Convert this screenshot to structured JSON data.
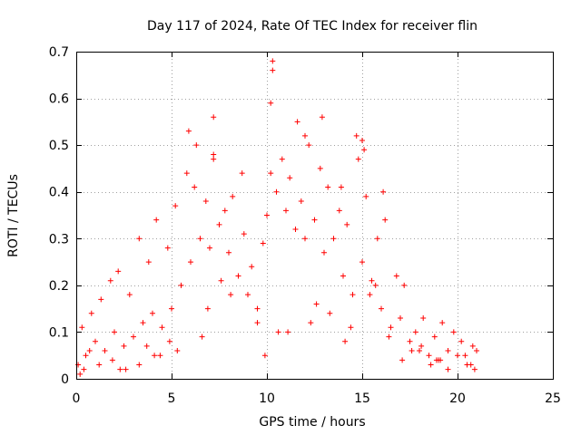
{
  "chart_data": {
    "type": "scatter",
    "title": "Day 117 of 2024, Rate Of TEC Index for receiver flin",
    "xlabel": "GPS time / hours",
    "ylabel": "ROTI / TECUs",
    "xlim": [
      0,
      25
    ],
    "ylim": [
      0,
      0.7
    ],
    "xticks": [
      "0",
      "5",
      "10",
      "15",
      "20",
      "25"
    ],
    "yticks": [
      "0",
      "0.1",
      "0.2",
      "0.3",
      "0.4",
      "0.5",
      "0.6",
      "0.7"
    ],
    "grid": true,
    "marker": "plus",
    "color": "#ff0000",
    "series": [
      {
        "x": [
          0.1,
          0.3,
          0.5,
          0.8,
          1.0,
          1.3,
          1.5,
          1.8,
          2.0,
          2.2,
          2.5,
          2.8,
          3.0,
          3.3,
          3.5,
          3.8,
          4.0,
          4.2,
          4.5,
          4.8,
          5.0,
          5.2,
          5.5,
          5.8,
          6.0,
          6.2,
          6.5,
          6.8,
          7.0,
          7.2,
          7.5,
          7.8,
          8.0,
          8.2,
          8.5,
          8.8,
          9.0,
          9.2,
          9.5,
          9.8,
          10.0,
          10.2,
          10.5,
          10.8,
          11.0,
          11.2,
          11.5,
          11.8,
          12.0,
          12.2,
          12.5,
          12.8,
          13.0,
          13.2,
          13.5,
          13.8,
          14.0,
          14.2,
          14.5,
          14.8,
          15.0,
          15.2,
          15.5,
          15.8,
          16.0,
          16.2,
          16.5,
          16.8,
          17.0,
          17.2,
          17.5,
          17.8,
          18.0,
          18.2,
          18.5,
          18.8,
          19.0,
          19.2,
          19.5,
          19.8,
          20.0,
          20.2,
          20.5,
          20.8,
          21.0,
          5.9,
          7.2,
          7.2,
          10.3,
          10.3,
          10.2,
          11.6,
          12.0,
          12.9,
          14.7,
          15.0,
          15.1,
          16.1,
          13.9,
          6.3,
          8.7,
          0.4,
          1.9,
          3.3,
          4.4,
          17.1,
          18.6,
          19.5,
          20.9,
          0.2,
          2.6,
          6.6,
          9.5,
          11.1,
          13.3,
          14.4,
          16.4,
          17.6,
          18.9,
          20.4,
          4.9,
          8.1,
          12.6,
          15.7,
          1.2,
          3.7,
          6.9,
          10.6,
          14.1,
          19.1,
          2.3,
          5.3,
          7.6,
          9.9,
          12.3,
          15.4,
          18.1,
          20.7,
          0.7,
          4.1
        ],
        "y": [
          0.03,
          0.11,
          0.05,
          0.14,
          0.08,
          0.17,
          0.06,
          0.21,
          0.1,
          0.23,
          0.07,
          0.18,
          0.09,
          0.3,
          0.12,
          0.25,
          0.14,
          0.34,
          0.11,
          0.28,
          0.15,
          0.37,
          0.2,
          0.44,
          0.25,
          0.41,
          0.3,
          0.38,
          0.28,
          0.47,
          0.33,
          0.36,
          0.27,
          0.39,
          0.22,
          0.31,
          0.18,
          0.24,
          0.15,
          0.29,
          0.35,
          0.44,
          0.4,
          0.47,
          0.36,
          0.43,
          0.32,
          0.38,
          0.3,
          0.5,
          0.34,
          0.45,
          0.27,
          0.41,
          0.3,
          0.36,
          0.22,
          0.33,
          0.18,
          0.47,
          0.25,
          0.39,
          0.21,
          0.3,
          0.15,
          0.34,
          0.11,
          0.22,
          0.13,
          0.2,
          0.08,
          0.1,
          0.06,
          0.13,
          0.05,
          0.09,
          0.04,
          0.12,
          0.06,
          0.1,
          0.05,
          0.08,
          0.03,
          0.07,
          0.06,
          0.53,
          0.56,
          0.48,
          0.68,
          0.66,
          0.59,
          0.55,
          0.52,
          0.56,
          0.52,
          0.51,
          0.49,
          0.4,
          0.41,
          0.5,
          0.44,
          0.02,
          0.04,
          0.03,
          0.05,
          0.04,
          0.03,
          0.02,
          0.02,
          0.01,
          0.02,
          0.09,
          0.12,
          0.1,
          0.14,
          0.11,
          0.09,
          0.06,
          0.04,
          0.05,
          0.08,
          0.18,
          0.16,
          0.2,
          0.03,
          0.07,
          0.15,
          0.1,
          0.08,
          0.04,
          0.02,
          0.06,
          0.21,
          0.05,
          0.12,
          0.18,
          0.07,
          0.03,
          0.06,
          0.05
        ]
      }
    ]
  }
}
